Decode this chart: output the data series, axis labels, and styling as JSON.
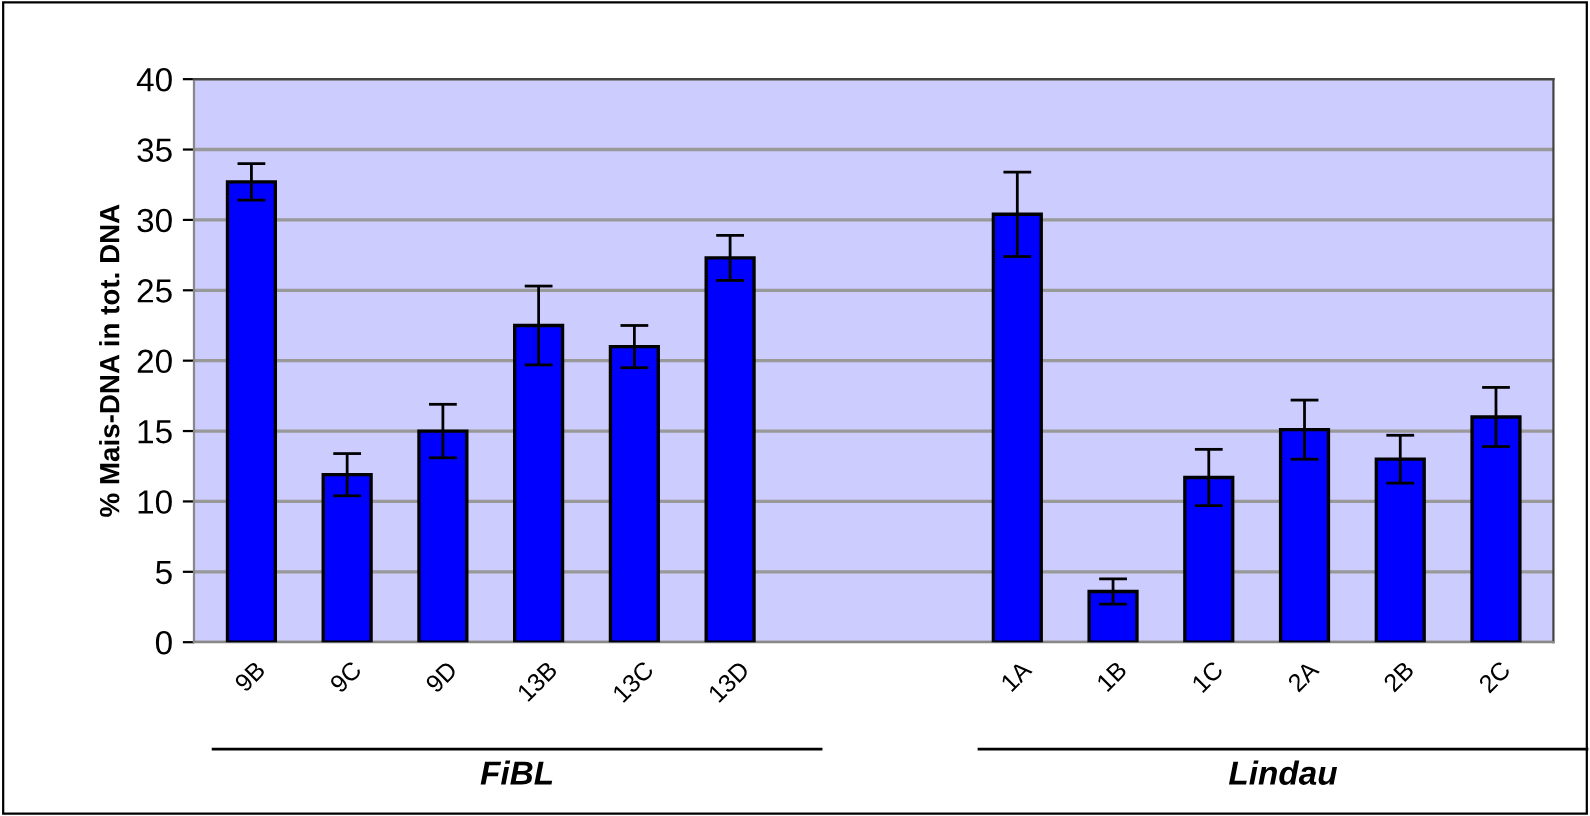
{
  "chart_data": {
    "type": "bar",
    "ylabel": "% Mais-DNA in tot. DNA",
    "categories": [
      "9B",
      "9C",
      "9D",
      "13B",
      "13C",
      "13D",
      null,
      null,
      "1A",
      "1B",
      "1C",
      "2A",
      "2B",
      "2C"
    ],
    "values": [
      32.7,
      11.9,
      15.0,
      22.5,
      21.0,
      27.3,
      null,
      null,
      30.4,
      3.6,
      11.7,
      15.1,
      13.0,
      16.0
    ],
    "errors": [
      1.3,
      1.5,
      1.9,
      2.8,
      1.5,
      1.6,
      null,
      null,
      3.0,
      0.9,
      2.0,
      2.1,
      1.7,
      2.1
    ],
    "color": "#0000ff",
    "ylim": [
      0,
      40
    ],
    "yticks": [
      0,
      5,
      10,
      15,
      20,
      25,
      30,
      35,
      40
    ],
    "grid": "y",
    "annotations": [
      "FiBL",
      "Lindau"
    ]
  }
}
